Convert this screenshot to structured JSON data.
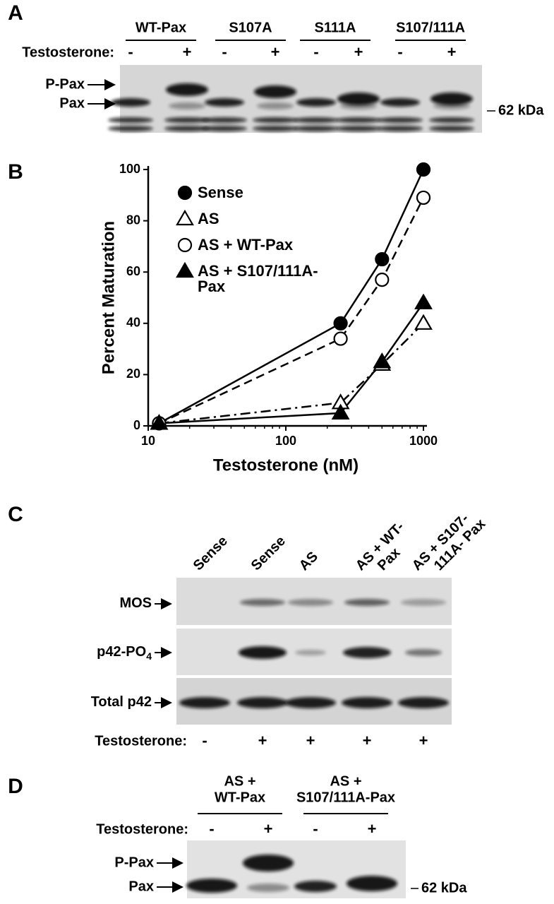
{
  "panel_a": {
    "label": "A",
    "groups": [
      "WT-Pax",
      "S107A",
      "S111A",
      "S107/111A"
    ],
    "treatment": "Testosterone:",
    "signs": [
      "-",
      "+",
      "-",
      "+",
      "-",
      "+",
      "-",
      "+"
    ],
    "rows": [
      "P-Pax",
      "Pax"
    ],
    "marker": "62 kDa"
  },
  "chart_data": {
    "type": "line",
    "label": "B",
    "xlabel": "Testosterone (nM)",
    "ylabel": "Percent Maturation",
    "xscale": "log",
    "xlim": [
      10,
      1000
    ],
    "xticks": [
      10,
      100,
      1000
    ],
    "ylim": [
      0,
      100
    ],
    "yticks": [
      0,
      20,
      40,
      60,
      80,
      100
    ],
    "legend": "upper left",
    "x": [
      12,
      250,
      500,
      1000
    ],
    "series": [
      {
        "name": "Sense",
        "color": "#000000",
        "marker": "circle",
        "filled": true,
        "dash": "solid",
        "values": [
          1,
          40,
          65,
          100
        ]
      },
      {
        "name": "AS",
        "color": "#000000",
        "marker": "triangle",
        "filled": false,
        "dash": "dashdot",
        "values": [
          1,
          9,
          24,
          40
        ]
      },
      {
        "name": "AS + WT-Pax",
        "color": "#000000",
        "marker": "circle",
        "filled": false,
        "dash": "dashed",
        "values": [
          1,
          34,
          57,
          89
        ]
      },
      {
        "name": "AS + S107/111A-Pax",
        "color": "#000000",
        "marker": "triangle",
        "filled": true,
        "dash": "solid",
        "values": [
          1,
          5,
          25,
          48
        ]
      }
    ]
  },
  "panel_c": {
    "label": "C",
    "lanes": [
      [
        "Sense"
      ],
      [
        "Sense"
      ],
      [
        "AS"
      ],
      [
        "AS + WT-",
        "Pax"
      ],
      [
        "AS + S107-",
        "111A- Pax"
      ]
    ],
    "rows": [
      {
        "text": "MOS"
      },
      {
        "text": "p42-PO",
        "sub": "4"
      },
      {
        "text": "Total p42"
      }
    ],
    "treatment": "Testosterone:",
    "signs": [
      "-",
      "+",
      "+",
      "+",
      "+"
    ]
  },
  "panel_d": {
    "label": "D",
    "groups": [
      [
        "AS +",
        "WT-Pax"
      ],
      [
        "AS +",
        "S107/111A-Pax"
      ]
    ],
    "treatment": "Testosterone:",
    "signs": [
      "-",
      "+",
      "-",
      "+"
    ],
    "rows": [
      "P-Pax",
      "Pax"
    ],
    "marker": "62 kDa"
  }
}
